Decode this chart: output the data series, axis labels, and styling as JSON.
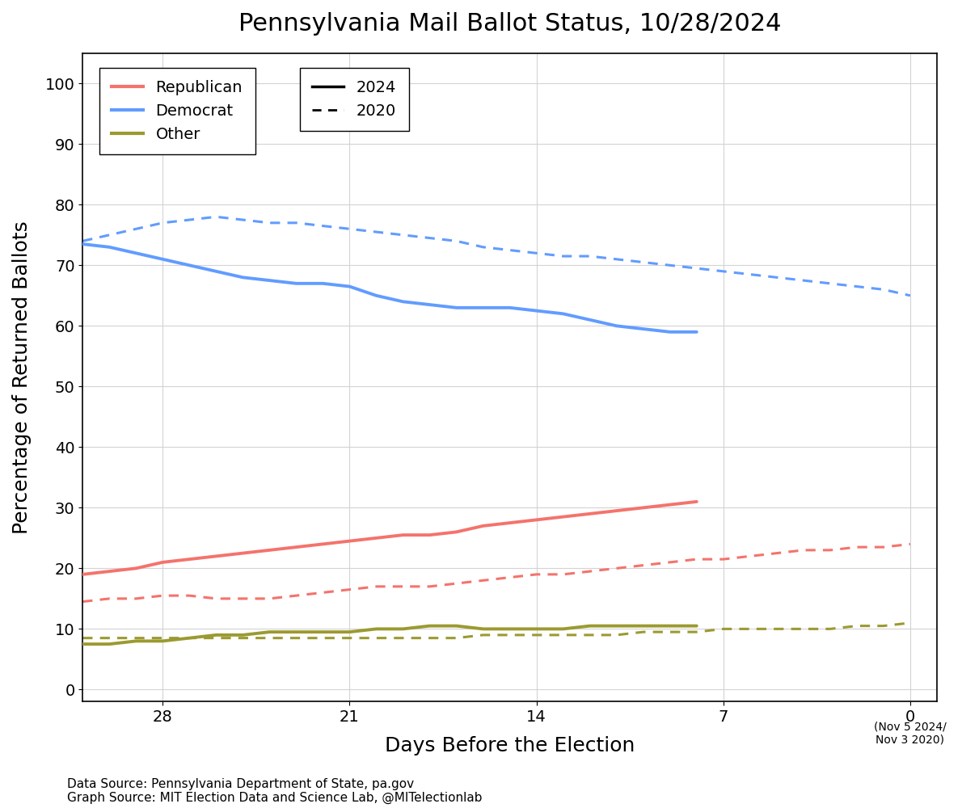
{
  "title": "Pennsylvania Mail Ballot Status, 10/28/2024",
  "xlabel": "Days Before the Election",
  "ylabel": "Percentage of Returned Ballots",
  "footnote1": "Data Source: Pennsylvania Department of State, pa.gov",
  "footnote2": "Graph Source: MIT Election Data and Science Lab, @MITelectionlab",
  "annotation": "(Nov 5 2024/\nNov 3 2020)",
  "x_ticks": [
    28,
    21,
    14,
    7,
    0
  ],
  "xlim_left": 31,
  "xlim_right": -1,
  "ylim": [
    -2,
    105
  ],
  "yticks": [
    0,
    10,
    20,
    30,
    40,
    50,
    60,
    70,
    80,
    90,
    100
  ],
  "colors": {
    "republican": "#F4736C",
    "democrat": "#619CFF",
    "other": "#9B9A30"
  },
  "dem_2024_x": [
    31,
    30,
    29,
    28,
    27,
    26,
    25,
    24,
    23,
    22,
    21,
    20,
    19,
    18,
    17,
    16,
    15,
    14,
    13,
    12,
    11,
    10,
    9,
    8
  ],
  "dem_2024_y": [
    73.5,
    73,
    72,
    71,
    70,
    69,
    68,
    67.5,
    67,
    67,
    66.5,
    65,
    64,
    63.5,
    63,
    63,
    63,
    62.5,
    62,
    61,
    60,
    59.5,
    59,
    59
  ],
  "rep_2024_x": [
    31,
    30,
    29,
    28,
    27,
    26,
    25,
    24,
    23,
    22,
    21,
    20,
    19,
    18,
    17,
    16,
    15,
    14,
    13,
    12,
    11,
    10,
    9,
    8
  ],
  "rep_2024_y": [
    19,
    19.5,
    20,
    21,
    21.5,
    22,
    22.5,
    23,
    23.5,
    24,
    24.5,
    25,
    25.5,
    25.5,
    26,
    27,
    27.5,
    28,
    28.5,
    29,
    29.5,
    30,
    30.5,
    31
  ],
  "oth_2024_x": [
    31,
    30,
    29,
    28,
    27,
    26,
    25,
    24,
    23,
    22,
    21,
    20,
    19,
    18,
    17,
    16,
    15,
    14,
    13,
    12,
    11,
    10,
    9,
    8
  ],
  "oth_2024_y": [
    7.5,
    7.5,
    8,
    8,
    8.5,
    9,
    9,
    9.5,
    9.5,
    9.5,
    9.5,
    10,
    10,
    10.5,
    10.5,
    10,
    10,
    10,
    10,
    10.5,
    10.5,
    10.5,
    10.5,
    10.5
  ],
  "dem_2020_x": [
    31,
    30,
    29,
    28,
    27,
    26,
    25,
    24,
    23,
    22,
    21,
    20,
    19,
    18,
    17,
    16,
    15,
    14,
    13,
    12,
    11,
    10,
    9,
    8,
    7,
    6,
    5,
    4,
    3,
    2,
    1,
    0
  ],
  "dem_2020_y": [
    74,
    75,
    76,
    77,
    77.5,
    78,
    77.5,
    77,
    77,
    76.5,
    76,
    75.5,
    75,
    74.5,
    74,
    73,
    72.5,
    72,
    71.5,
    71.5,
    71,
    70.5,
    70,
    69.5,
    69,
    68.5,
    68,
    67.5,
    67,
    66.5,
    66,
    65
  ],
  "rep_2020_x": [
    31,
    30,
    29,
    28,
    27,
    26,
    25,
    24,
    23,
    22,
    21,
    20,
    19,
    18,
    17,
    16,
    15,
    14,
    13,
    12,
    11,
    10,
    9,
    8,
    7,
    6,
    5,
    4,
    3,
    2,
    1,
    0
  ],
  "rep_2020_y": [
    14.5,
    15,
    15,
    15.5,
    15.5,
    15,
    15,
    15,
    15.5,
    16,
    16.5,
    17,
    17,
    17,
    17.5,
    18,
    18.5,
    19,
    19,
    19.5,
    20,
    20.5,
    21,
    21.5,
    21.5,
    22,
    22.5,
    23,
    23,
    23.5,
    23.5,
    24
  ],
  "oth_2020_x": [
    31,
    30,
    29,
    28,
    27,
    26,
    25,
    24,
    23,
    22,
    21,
    20,
    19,
    18,
    17,
    16,
    15,
    14,
    13,
    12,
    11,
    10,
    9,
    8,
    7,
    6,
    5,
    4,
    3,
    2,
    1,
    0
  ],
  "oth_2020_y": [
    8.5,
    8.5,
    8.5,
    8.5,
    8.5,
    8.5,
    8.5,
    8.5,
    8.5,
    8.5,
    8.5,
    8.5,
    8.5,
    8.5,
    8.5,
    9,
    9,
    9,
    9,
    9,
    9,
    9.5,
    9.5,
    9.5,
    10,
    10,
    10,
    10,
    10,
    10.5,
    10.5,
    11
  ],
  "lw_2024": 2.8,
  "lw_2020": 2.2,
  "legend_fontsize": 14,
  "title_fontsize": 22,
  "tick_fontsize": 14,
  "axis_label_fontsize": 18,
  "footnote_fontsize": 11
}
